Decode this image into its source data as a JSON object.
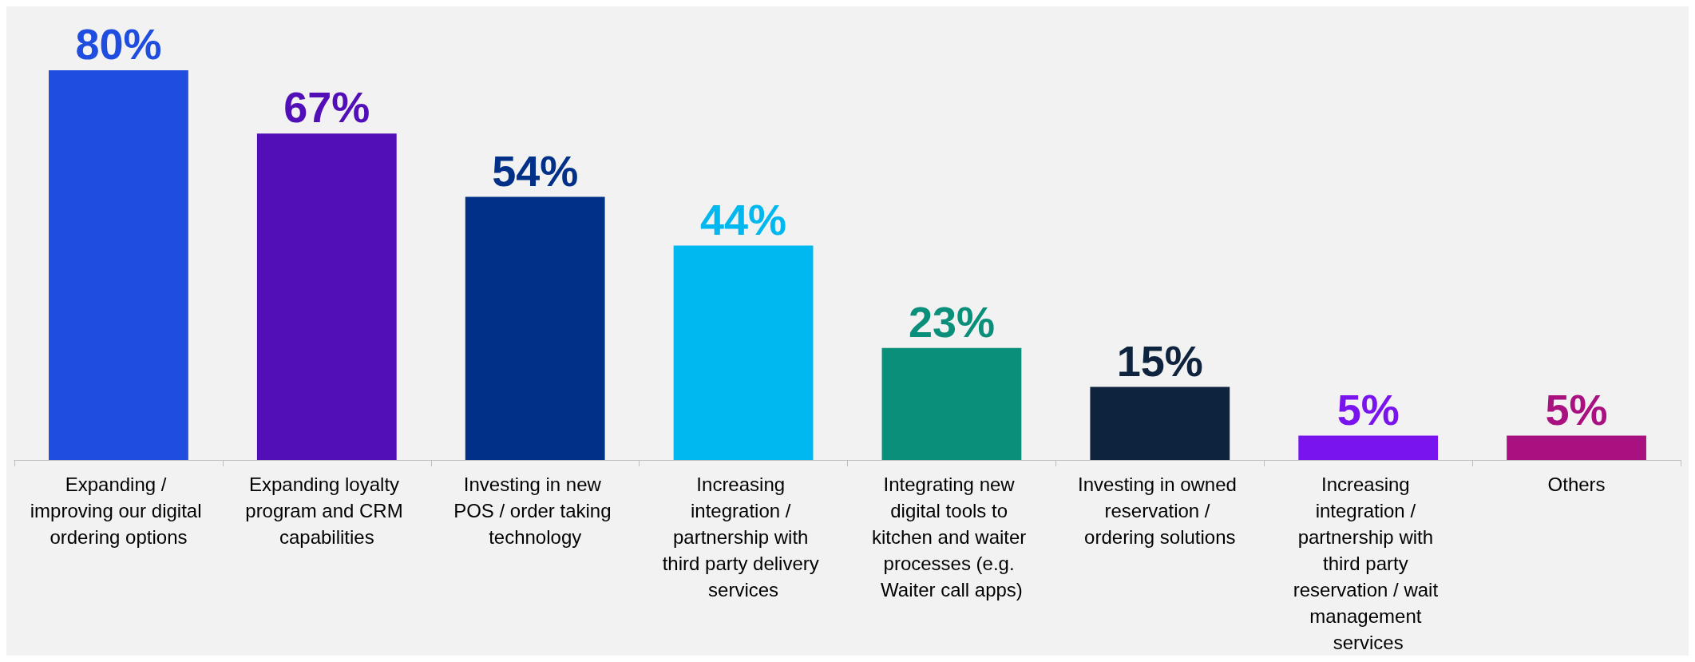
{
  "chart_data": {
    "type": "bar",
    "categories": [
      "Expanding / improving our digital ordering options",
      "Expanding loyalty program and CRM capabilities",
      "Investing in new POS / order taking technology",
      "Increasing integration / partnership with third party delivery services",
      "Integrating new digital tools to kitchen and waiter processes (e.g. Waiter call apps)",
      "Investing in owned reservation / ordering solutions",
      "Increasing integration / partnership with third party reservation / wait management services",
      "Others"
    ],
    "values": [
      80,
      67,
      54,
      44,
      23,
      15,
      5,
      5
    ],
    "value_labels": [
      "80%",
      "67%",
      "54%",
      "44%",
      "23%",
      "15%",
      "5%",
      "5%"
    ],
    "colors": [
      "#1f4de0",
      "#520fb8",
      "#003087",
      "#00b8f0",
      "#0a8f7a",
      "#0e233d",
      "#7a14ee",
      "#a8117f"
    ]
  }
}
